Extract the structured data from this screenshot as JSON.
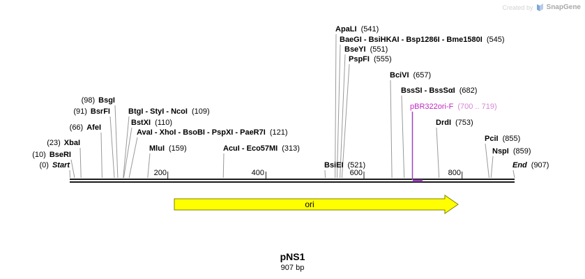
{
  "watermark": {
    "created_by": "Created by",
    "brand": "SnapGene"
  },
  "map": {
    "title": "pNS1",
    "length": "907 bp",
    "feature_label": "ori",
    "ruler": [
      "200",
      "400",
      "600",
      "800"
    ],
    "primer": {
      "name": "pBR322ori-F",
      "pos": "(700 .. 719)"
    },
    "sites": [
      {
        "name": "ApaLI",
        "pos": "(541)"
      },
      {
        "name": "BaeGI - BsiHKAI - Bsp1286I - Bme1580I",
        "pos": "(545)"
      },
      {
        "name": "BseYI",
        "pos": "(551)"
      },
      {
        "name": "PspFI",
        "pos": "(555)"
      },
      {
        "name": "BciVI",
        "pos": "(657)"
      },
      {
        "name": "BssSI - BssSαI",
        "pos": "(682)"
      },
      {
        "name": "DrdI",
        "pos": "(753)"
      },
      {
        "name": "BsgI",
        "pos": "(98)"
      },
      {
        "name": "BsrFI",
        "pos": "(91)"
      },
      {
        "name": "BtgI - StyI - NcoI",
        "pos": "(109)"
      },
      {
        "name": "AfeI",
        "pos": "(66)"
      },
      {
        "name": "BstXI",
        "pos": "(110)"
      },
      {
        "name": "AvaI - XhoI - BsoBI - PspXI - PaeR7I",
        "pos": "(121)"
      },
      {
        "name": "XbaI",
        "pos": "(23)"
      },
      {
        "name": "MluI",
        "pos": "(159)"
      },
      {
        "name": "AcuI - Eco57MI",
        "pos": "(313)"
      },
      {
        "name": "BseRI",
        "pos": "(10)"
      },
      {
        "name": "Start",
        "pos": "(0)"
      },
      {
        "name": "BsiEI",
        "pos": "(521)"
      },
      {
        "name": "PciI",
        "pos": "(855)"
      },
      {
        "name": "NspI",
        "pos": "(859)"
      },
      {
        "name": "End",
        "pos": "(907)"
      }
    ],
    "colors": {
      "feature_fill": "#ffff00",
      "feature_stroke": "#808000",
      "primer": "#c127c1",
      "leader_line": "#999999",
      "sequence_line": "#1a1a1a"
    }
  }
}
